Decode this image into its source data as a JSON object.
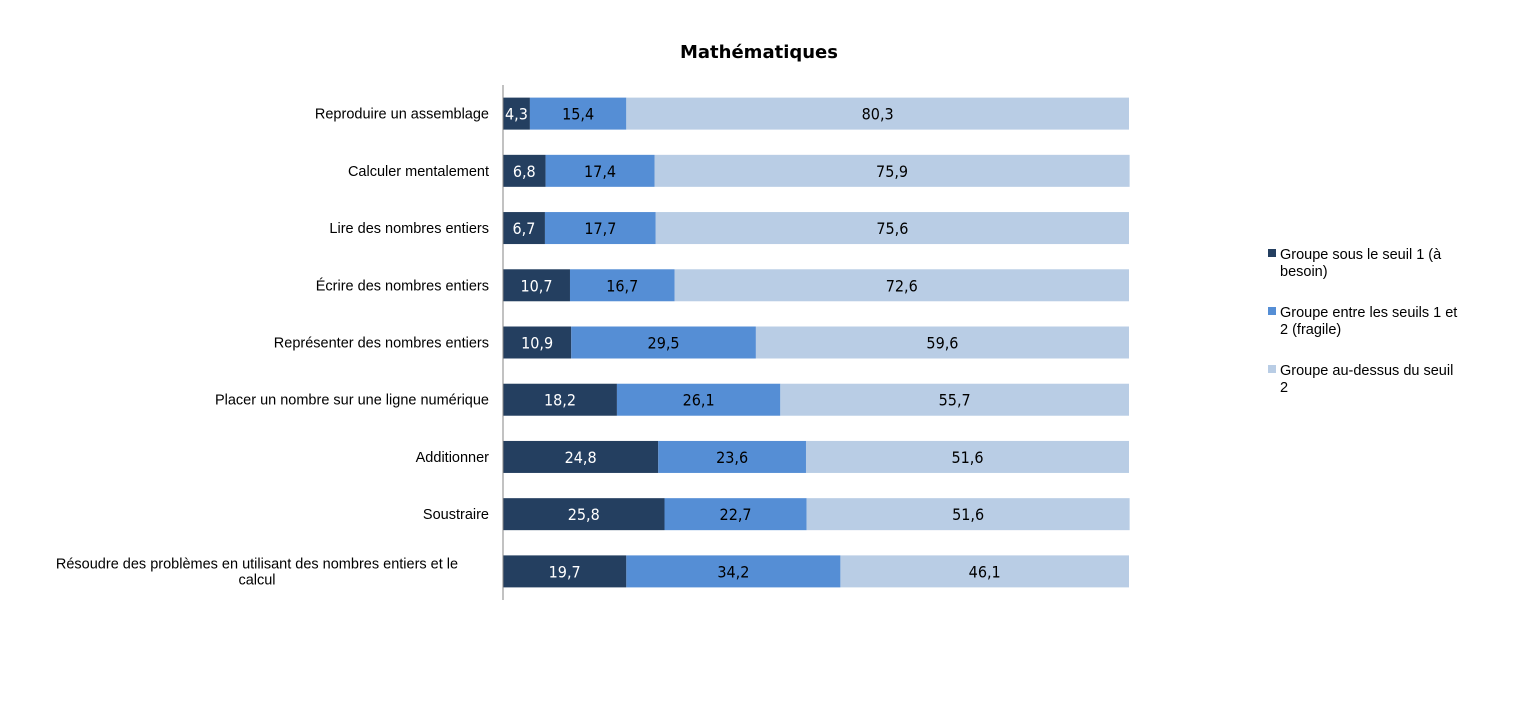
{
  "chart_data": {
    "type": "bar",
    "orientation": "horizontal",
    "stacked": true,
    "percent_stacked": true,
    "title": "Mathématiques",
    "xlabel": "",
    "ylabel": "",
    "xlim": [
      0,
      100
    ],
    "grid": false,
    "legend_position": "right",
    "categories": [
      [
        "Reproduire un assemblage"
      ],
      [
        "Calculer mentalement"
      ],
      [
        "Lire des nombres entiers"
      ],
      [
        "Écrire des nombres entiers"
      ],
      [
        "Représenter des nombres entiers"
      ],
      [
        "Placer un nombre sur une ligne numérique"
      ],
      [
        "Additionner"
      ],
      [
        "Soustraire"
      ],
      [
        "Résoudre des problèmes en utilisant des nombres entiers et le",
        "calcul"
      ]
    ],
    "series": [
      {
        "name": [
          "Groupe sous le seuil 1 (à",
          "besoin)"
        ],
        "color": "#243F60",
        "label_color": "#ffffff",
        "values": [
          4.3,
          6.8,
          6.7,
          10.7,
          10.9,
          18.2,
          24.8,
          25.8,
          19.7
        ],
        "labels": [
          "4,3",
          "6,8",
          "6,7",
          "10,7",
          "10,9",
          "18,2",
          "24,8",
          "25,8",
          "19,7"
        ]
      },
      {
        "name": [
          "Groupe entre les seuils 1 et",
          "2 (fragile)"
        ],
        "color": "#558ED5",
        "label_color": "#000000",
        "values": [
          15.4,
          17.4,
          17.7,
          16.7,
          29.5,
          26.1,
          23.6,
          22.7,
          34.2
        ],
        "labels": [
          "15,4",
          "17,4",
          "17,7",
          "16,7",
          "29,5",
          "26,1",
          "23,6",
          "22,7",
          "34,2"
        ]
      },
      {
        "name": [
          "Groupe au-dessus du seuil",
          "2"
        ],
        "color": "#B9CDE5",
        "label_color": "#000000",
        "values": [
          80.3,
          75.9,
          75.6,
          72.6,
          59.6,
          55.7,
          51.6,
          51.6,
          46.1
        ],
        "labels": [
          "80,3",
          "75,9",
          "75,6",
          "72,6",
          "59,6",
          "55,7",
          "51,6",
          "51,6",
          "46,1"
        ]
      }
    ]
  }
}
